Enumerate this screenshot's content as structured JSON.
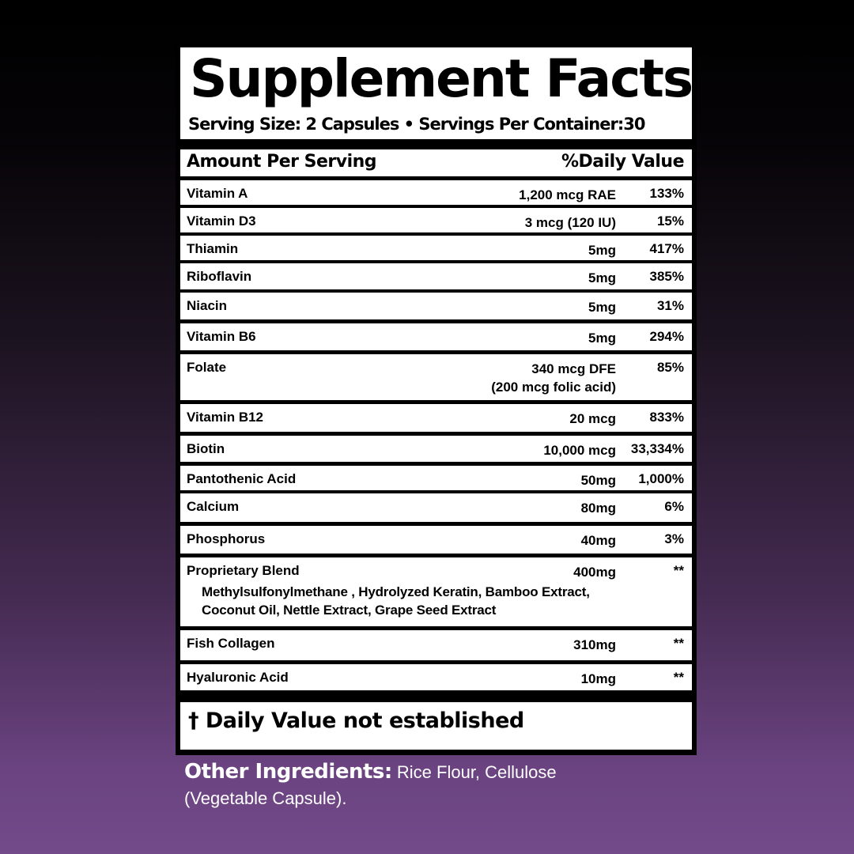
{
  "title": "Supplement Facts",
  "serving_line": "Serving Size: 2 Capsules •  Servings Per Container:30",
  "header": {
    "amount": "Amount Per Serving",
    "dv": "%Daily Value"
  },
  "rows": [
    {
      "name": "Vitamin A",
      "amount": "1,200 mcg RAE",
      "dv": "133%"
    },
    {
      "name": "Vitamin D3",
      "amount": "3 mcg (120 IU)",
      "dv": "15%"
    },
    {
      "name": "Thiamin",
      "amount": "5mg",
      "dv": "417%"
    },
    {
      "name": "Riboflavin",
      "amount": "5mg",
      "dv": "385%"
    },
    {
      "name": "Niacin",
      "amount": "5mg",
      "dv": "31%"
    },
    {
      "name": "Vitamin B6",
      "amount": "5mg",
      "dv": "294%"
    },
    {
      "name": "Folate",
      "amount": "340 mcg DFE",
      "amount2": "(200 mcg folic acid)",
      "dv": "85%"
    },
    {
      "name": "Vitamin B12",
      "amount": "20 mcg",
      "dv": "833%"
    },
    {
      "name": "Biotin",
      "amount": "10,000 mcg",
      "dv": "33,334%"
    },
    {
      "name": "Pantothenic Acid",
      "amount": "50mg",
      "dv": "1,000%"
    },
    {
      "name": "Calcium",
      "amount": "80mg",
      "dv": "6%"
    },
    {
      "name": "Phosphorus",
      "amount": "40mg",
      "dv": "3%"
    },
    {
      "name": "Proprietary Blend",
      "amount": "400mg",
      "dv": "**",
      "ingredients_1": "Methylsulfonylmethane , Hydrolyzed Keratin, Bamboo Extract,",
      "ingredients_2": "Coconut Oil, Nettle Extract, Grape Seed Extract"
    },
    {
      "name": "Fish Collagen",
      "amount": "310mg",
      "dv": "**"
    },
    {
      "name": "Hyaluronic Acid",
      "amount": "10mg",
      "dv": "**"
    }
  ],
  "footnote": "† Daily Value not established",
  "other": {
    "label": "Other Ingredients:",
    "text": " Rice Flour, Cellulose (Vegetable Capsule)."
  }
}
